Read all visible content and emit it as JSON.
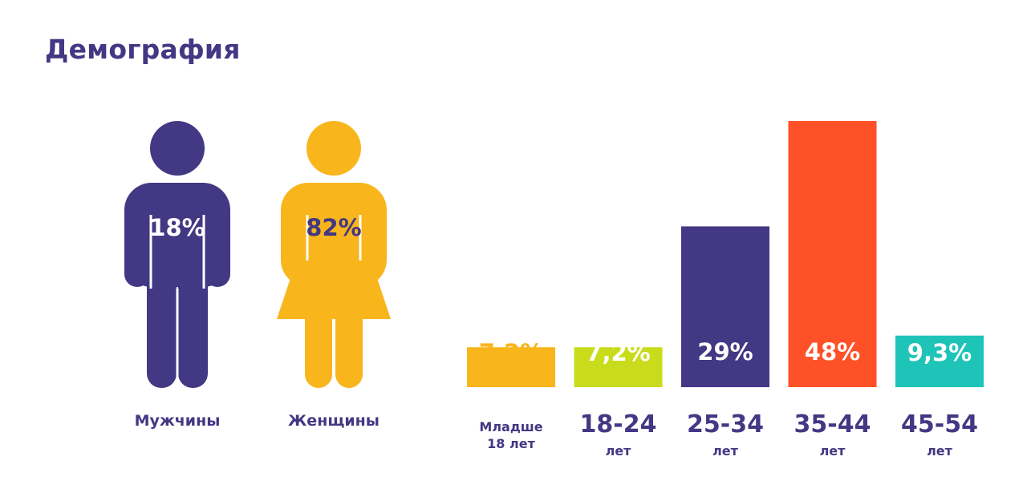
{
  "title": "Демография",
  "gender": [
    {
      "label": "Мужчины",
      "percent_label": "18%",
      "value": 18,
      "color": "#423883",
      "text_color": "#ffffff"
    },
    {
      "label": "Женщины",
      "percent_label": "82%",
      "value": 82,
      "color": "#F8B51C",
      "text_color": "#423883"
    }
  ],
  "chart_data": {
    "type": "bar",
    "categories": [
      "Младше 18 лет",
      "18-24 лет",
      "25-34 лет",
      "35-44 лет",
      "45-54 лет"
    ],
    "category_labels": [
      {
        "main": "Младше",
        "sub": "18 лет"
      },
      {
        "main": "18-24",
        "sub": "лет"
      },
      {
        "main": "25-34",
        "sub": "лет"
      },
      {
        "main": "35-44",
        "sub": "лет"
      },
      {
        "main": "45-54",
        "sub": "лет"
      }
    ],
    "values": [
      7.2,
      7.2,
      29,
      48,
      9.3
    ],
    "value_labels": [
      "7,2%",
      "7,2%",
      "29%",
      "48%",
      "9,3%"
    ],
    "colors": [
      "#F8B51C",
      "#C8DC1C",
      "#423883",
      "#FF5127",
      "#1FC4B8"
    ],
    "label_colors": [
      "#F8B51C",
      "#ffffff",
      "#ffffff",
      "#ffffff",
      "#ffffff"
    ],
    "grid": false,
    "legend": "none"
  }
}
